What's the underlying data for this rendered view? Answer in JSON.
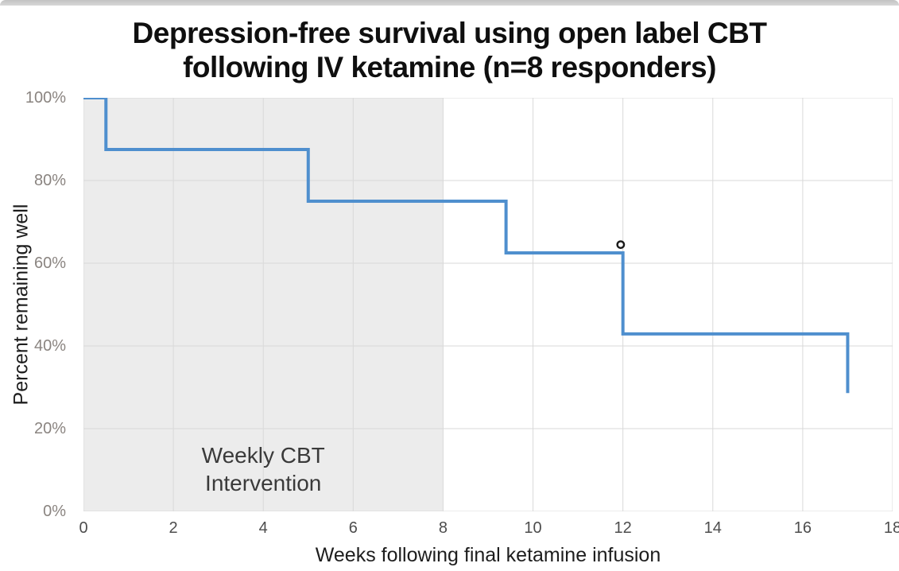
{
  "chart_data": {
    "type": "line",
    "subtype": "kaplan_meier_step_survival",
    "title": "Depression-free survival using open label CBT following IV ketamine (n=8 responders)",
    "title_line1": "Depression-free survival using open label CBT",
    "title_line2": "following IV ketamine (n=8 responders)",
    "xlabel": "Weeks following final ketamine infusion",
    "ylabel": "Percent remaining well",
    "xlim": [
      0,
      18
    ],
    "ylim": [
      0,
      100
    ],
    "x_ticks": [
      {
        "value": 0,
        "label": "0"
      },
      {
        "value": 2,
        "label": "2"
      },
      {
        "value": 4,
        "label": "4"
      },
      {
        "value": 6,
        "label": "6"
      },
      {
        "value": 8,
        "label": "8"
      },
      {
        "value": 10,
        "label": "10"
      },
      {
        "value": 12,
        "label": "12"
      },
      {
        "value": 14,
        "label": "14"
      },
      {
        "value": 16,
        "label": "16"
      },
      {
        "value": 18,
        "label": "18"
      }
    ],
    "y_ticks": [
      {
        "value": 0,
        "label": "0%"
      },
      {
        "value": 20,
        "label": "20%"
      },
      {
        "value": 40,
        "label": "40%"
      },
      {
        "value": 60,
        "label": "60%"
      },
      {
        "value": 80,
        "label": "80%"
      },
      {
        "value": 100,
        "label": "100%"
      }
    ],
    "series": [
      {
        "name": "Percent remaining well",
        "color": "#4f8fce",
        "line_width": 4,
        "steps": [
          {
            "week": 0,
            "percent": 100
          },
          {
            "week": 0.5,
            "percent": 87.5
          },
          {
            "week": 5,
            "percent": 75
          },
          {
            "week": 9.4,
            "percent": 62.5
          },
          {
            "week": 12,
            "percent": 42.9
          },
          {
            "week": 17,
            "percent": 28.6
          }
        ]
      }
    ],
    "censored_points": [
      {
        "week": 11.95,
        "percent": 64.5,
        "marker": "open-circle",
        "color": "#1a1a1a"
      }
    ],
    "shaded_region": {
      "x_start": 0,
      "x_end": 8,
      "color": "#ececec",
      "label_line1": "Weekly CBT",
      "label_line2": "Intervention"
    },
    "grid": true,
    "gridline_color": "#d9d9d9",
    "legend": "none"
  }
}
